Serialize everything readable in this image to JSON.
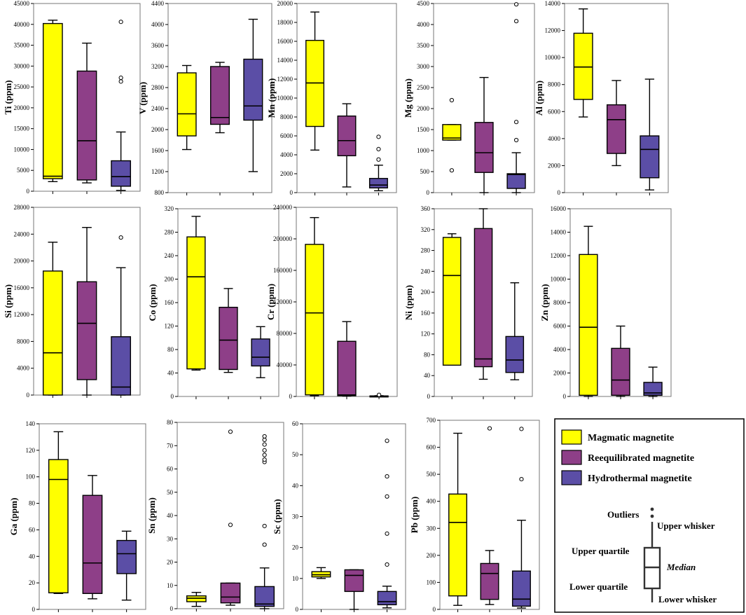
{
  "legend": {
    "title": "",
    "items": [
      {
        "label": "Magmatic magnetite",
        "color": "#ffff00"
      },
      {
        "label": "Reequilibrated magnetite",
        "color": "#8e3f88"
      },
      {
        "label": "Hydrothermal magnetite",
        "color": "#5b4ea6"
      }
    ],
    "key": {
      "outliers": "Outliers",
      "upper_whisker": "Upper whisker",
      "upper_quartile": "Upper quartile",
      "median": "Median",
      "lower_quartile": "Lower quartile",
      "lower_whisker": "Lower whisker"
    }
  },
  "chart_data": [
    {
      "type": "box",
      "element": "Ti",
      "ylabel": "Ti (ppm)",
      "ylim": [
        0,
        45000
      ],
      "yticks": [
        0,
        5000,
        10000,
        15000,
        20000,
        25000,
        30000,
        35000,
        40000,
        45000
      ],
      "series": [
        {
          "name": "Magmatic magnetite",
          "whisker_low": 2300,
          "q1": 3000,
          "median": 3600,
          "q3": 40200,
          "whisker_high": 41000,
          "outliers": []
        },
        {
          "name": "Reequilibrated magnetite",
          "whisker_low": 2000,
          "q1": 2700,
          "median": 12100,
          "q3": 28800,
          "whisker_high": 35500,
          "outliers": []
        },
        {
          "name": "Hydrothermal magnetite",
          "whisker_low": 200,
          "q1": 1200,
          "median": 3500,
          "q3": 7300,
          "whisker_high": 14200,
          "outliers": [
            26300,
            27200,
            40600
          ]
        }
      ]
    },
    {
      "type": "box",
      "element": "V",
      "ylabel": "V (ppm)",
      "ylim": [
        800,
        4400
      ],
      "yticks": [
        800,
        1200,
        1600,
        2000,
        2400,
        2800,
        3200,
        3600,
        4000,
        4400
      ],
      "series": [
        {
          "name": "Magmatic magnetite",
          "whisker_low": 1620,
          "q1": 1880,
          "median": 2300,
          "q3": 3080,
          "whisker_high": 3220,
          "outliers": []
        },
        {
          "name": "Reequilibrated magnetite",
          "whisker_low": 1940,
          "q1": 2100,
          "median": 2230,
          "q3": 3200,
          "whisker_high": 3280,
          "outliers": []
        },
        {
          "name": "Hydrothermal magnetite",
          "whisker_low": 1200,
          "q1": 2180,
          "median": 2450,
          "q3": 3340,
          "whisker_high": 4100,
          "outliers": []
        }
      ]
    },
    {
      "type": "box",
      "element": "Mn",
      "ylabel": "Mn (ppm)",
      "ylim": [
        0,
        20000
      ],
      "yticks": [
        0,
        2000,
        4000,
        6000,
        8000,
        10000,
        12000,
        14000,
        16000,
        18000,
        20000
      ],
      "series": [
        {
          "name": "Magmatic magnetite",
          "whisker_low": 4500,
          "q1": 7000,
          "median": 11600,
          "q3": 16100,
          "whisker_high": 19100,
          "outliers": []
        },
        {
          "name": "Reequilibrated magnetite",
          "whisker_low": 600,
          "q1": 3900,
          "median": 5500,
          "q3": 8100,
          "whisker_high": 9400,
          "outliers": []
        },
        {
          "name": "Hydrothermal magnetite",
          "whisker_low": 200,
          "q1": 500,
          "median": 800,
          "q3": 1500,
          "whisker_high": 2900,
          "outliers": [
            3500,
            4600,
            5900
          ]
        }
      ]
    },
    {
      "type": "box",
      "element": "Mg",
      "ylabel": "Mg (ppm)",
      "ylim": [
        0,
        4500
      ],
      "yticks": [
        0,
        500,
        1000,
        1500,
        2000,
        2500,
        3000,
        3500,
        4000,
        4500
      ],
      "series": [
        {
          "name": "Magmatic magnetite",
          "whisker_low": 1250,
          "q1": 1250,
          "median": 1300,
          "q3": 1620,
          "whisker_high": 1620,
          "outliers": [
            530,
            2200
          ]
        },
        {
          "name": "Reequilibrated magnetite",
          "whisker_low": 0,
          "q1": 480,
          "median": 950,
          "q3": 1670,
          "whisker_high": 2740,
          "outliers": []
        },
        {
          "name": "Hydrothermal magnetite",
          "whisker_low": 0,
          "q1": 100,
          "median": 430,
          "q3": 450,
          "whisker_high": 950,
          "outliers": [
            1250,
            1680,
            4080,
            4480
          ]
        }
      ]
    },
    {
      "type": "box",
      "element": "Al",
      "ylabel": "Al (ppm)",
      "ylim": [
        0,
        14000
      ],
      "yticks": [
        0,
        2000,
        4000,
        6000,
        8000,
        10000,
        12000,
        14000
      ],
      "series": [
        {
          "name": "Magmatic magnetite",
          "whisker_low": 5600,
          "q1": 6900,
          "median": 9300,
          "q3": 11800,
          "whisker_high": 13600,
          "outliers": []
        },
        {
          "name": "Reequilibrated magnetite",
          "whisker_low": 2000,
          "q1": 2900,
          "median": 5400,
          "q3": 6500,
          "whisker_high": 8300,
          "outliers": []
        },
        {
          "name": "Hydrothermal magnetite",
          "whisker_low": 200,
          "q1": 1100,
          "median": 3200,
          "q3": 4200,
          "whisker_high": 8400,
          "outliers": []
        }
      ]
    },
    {
      "type": "box",
      "element": "Si",
      "ylabel": "Si (ppm)",
      "ylim": [
        0,
        28000
      ],
      "yticks": [
        0,
        4000,
        8000,
        12000,
        16000,
        20000,
        24000,
        28000
      ],
      "series": [
        {
          "name": "Magmatic magnetite",
          "whisker_low": 0,
          "q1": 0,
          "median": 6300,
          "q3": 18500,
          "whisker_high": 22800,
          "outliers": []
        },
        {
          "name": "Reequilibrated magnetite",
          "whisker_low": 0,
          "q1": 2300,
          "median": 10700,
          "q3": 16900,
          "whisker_high": 25000,
          "outliers": []
        },
        {
          "name": "Hydrothermal magnetite",
          "whisker_low": 0,
          "q1": 0,
          "median": 1200,
          "q3": 8700,
          "whisker_high": 19000,
          "outliers": [
            23500
          ]
        }
      ]
    },
    {
      "type": "box",
      "element": "Co",
      "ylabel": "Co (ppm)",
      "ylim": [
        0,
        320
      ],
      "yticks": [
        0,
        40,
        80,
        120,
        160,
        200,
        240,
        280,
        320
      ],
      "series": [
        {
          "name": "Magmatic magnetite",
          "whisker_low": 45,
          "q1": 47,
          "median": 204,
          "q3": 272,
          "whisker_high": 307,
          "outliers": []
        },
        {
          "name": "Reequilibrated magnetite",
          "whisker_low": 41,
          "q1": 46,
          "median": 96,
          "q3": 152,
          "whisker_high": 184,
          "outliers": []
        },
        {
          "name": "Hydrothermal magnetite",
          "whisker_low": 32,
          "q1": 52,
          "median": 67,
          "q3": 98,
          "whisker_high": 119,
          "outliers": []
        }
      ]
    },
    {
      "type": "box",
      "element": "Cr",
      "ylabel": "Cr (ppm)",
      "ylim": [
        0,
        240000
      ],
      "yticks": [
        0,
        40000,
        80000,
        120000,
        160000,
        200000,
        240000
      ],
      "series": [
        {
          "name": "Magmatic magnetite",
          "whisker_low": 1000,
          "q1": 2000,
          "median": 106000,
          "q3": 193000,
          "whisker_high": 227000,
          "outliers": []
        },
        {
          "name": "Reequilibrated magnetite",
          "whisker_low": 500,
          "q1": 1000,
          "median": 2000,
          "q3": 70000,
          "whisker_high": 95000,
          "outliers": []
        },
        {
          "name": "Hydrothermal magnetite",
          "whisker_low": 0,
          "q1": 100,
          "median": 300,
          "q3": 700,
          "whisker_high": 1000,
          "outliers": [
            2000
          ]
        }
      ]
    },
    {
      "type": "box",
      "element": "Ni",
      "ylabel": "Ni (ppm)",
      "ylim": [
        0,
        360
      ],
      "yticks": [
        0,
        40,
        80,
        120,
        160,
        200,
        240,
        280,
        320,
        360
      ],
      "series": [
        {
          "name": "Magmatic magnetite",
          "whisker_low": 60,
          "q1": 60,
          "median": 232,
          "q3": 305,
          "whisker_high": 312,
          "outliers": []
        },
        {
          "name": "Reequilibrated magnetite",
          "whisker_low": 33,
          "q1": 57,
          "median": 72,
          "q3": 322,
          "whisker_high": 360,
          "outliers": []
        },
        {
          "name": "Hydrothermal magnetite",
          "whisker_low": 32,
          "q1": 46,
          "median": 70,
          "q3": 115,
          "whisker_high": 218,
          "outliers": []
        }
      ]
    },
    {
      "type": "box",
      "element": "Zn",
      "ylabel": "Zn (ppm)",
      "ylim": [
        0,
        16000
      ],
      "yticks": [
        0,
        2000,
        4000,
        6000,
        8000,
        10000,
        12000,
        14000,
        16000
      ],
      "series": [
        {
          "name": "Magmatic magnetite",
          "whisker_low": 0,
          "q1": 100,
          "median": 5900,
          "q3": 12100,
          "whisker_high": 14500,
          "outliers": []
        },
        {
          "name": "Reequilibrated magnetite",
          "whisker_low": 0,
          "q1": 100,
          "median": 1400,
          "q3": 4100,
          "whisker_high": 6000,
          "outliers": []
        },
        {
          "name": "Hydrothermal magnetite",
          "whisker_low": 0,
          "q1": 100,
          "median": 300,
          "q3": 1200,
          "whisker_high": 2500,
          "outliers": []
        }
      ]
    },
    {
      "type": "box",
      "element": "Ga",
      "ylabel": "Ga (ppm)",
      "ylim": [
        0,
        140
      ],
      "yticks": [
        0,
        20,
        40,
        60,
        80,
        100,
        120,
        140
      ],
      "series": [
        {
          "name": "Magmatic magnetite",
          "whisker_low": 12,
          "q1": 12.5,
          "median": 98,
          "q3": 113,
          "whisker_high": 134,
          "outliers": []
        },
        {
          "name": "Reequilibrated magnetite",
          "whisker_low": 8,
          "q1": 12,
          "median": 35,
          "q3": 86,
          "whisker_high": 101,
          "outliers": []
        },
        {
          "name": "Hydrothermal magnetite",
          "whisker_low": 7,
          "q1": 27,
          "median": 42,
          "q3": 52,
          "whisker_high": 59,
          "outliers": []
        }
      ]
    },
    {
      "type": "box",
      "element": "Sn",
      "ylabel": "Sn (ppm)",
      "ylim": [
        0,
        80
      ],
      "yticks": [
        0,
        10,
        20,
        30,
        40,
        50,
        60,
        70,
        80
      ],
      "series": [
        {
          "name": "Magmatic magnetite",
          "whisker_low": 1,
          "q1": 3,
          "median": 4.5,
          "q3": 5.5,
          "whisker_high": 7,
          "outliers": []
        },
        {
          "name": "Reequilibrated magnetite",
          "whisker_low": 1.5,
          "q1": 2.5,
          "median": 5,
          "q3": 11,
          "whisker_high": 11,
          "outliers": [
            36,
            76
          ]
        },
        {
          "name": "Hydrothermal magnetite",
          "whisker_low": 0,
          "q1": 1,
          "median": 2,
          "q3": 9.5,
          "whisker_high": 17.5,
          "outliers": [
            27.5,
            35.5,
            63,
            64,
            66,
            68,
            70.5,
            72.5,
            74
          ]
        }
      ]
    },
    {
      "type": "box",
      "element": "Sc",
      "ylabel": "Sc (ppm)",
      "ylim": [
        0,
        60
      ],
      "yticks": [
        0,
        10,
        20,
        30,
        40,
        50,
        60
      ],
      "series": [
        {
          "name": "Magmatic magnetite",
          "whisker_low": 10,
          "q1": 10.5,
          "median": 11.2,
          "q3": 12.2,
          "whisker_high": 13.5,
          "outliers": []
        },
        {
          "name": "Reequilibrated magnetite",
          "whisker_low": 0,
          "q1": 5.8,
          "median": 11,
          "q3": 12.8,
          "whisker_high": 12.8,
          "outliers": []
        },
        {
          "name": "Hydrothermal magnetite",
          "whisker_low": 0.5,
          "q1": 1.5,
          "median": 2.5,
          "q3": 5.8,
          "whisker_high": 7.5,
          "outliers": [
            14.5,
            24.5,
            36.5,
            43,
            54.5
          ]
        }
      ]
    },
    {
      "type": "box",
      "element": "Pb",
      "ylabel": "Pb (ppm)",
      "ylim": [
        0,
        700
      ],
      "yticks": [
        0,
        100,
        200,
        300,
        400,
        500,
        600,
        700
      ],
      "series": [
        {
          "name": "Magmatic magnetite",
          "whisker_low": 15,
          "q1": 50,
          "median": 322,
          "q3": 427,
          "whisker_high": 652,
          "outliers": []
        },
        {
          "name": "Reequilibrated magnetite",
          "whisker_low": 18,
          "q1": 37,
          "median": 133,
          "q3": 170,
          "whisker_high": 218,
          "outliers": [
            670
          ]
        },
        {
          "name": "Hydrothermal magnetite",
          "whisker_low": 5,
          "q1": 12,
          "median": 38,
          "q3": 142,
          "whisker_high": 330,
          "outliers": [
            482,
            668
          ]
        }
      ]
    }
  ]
}
